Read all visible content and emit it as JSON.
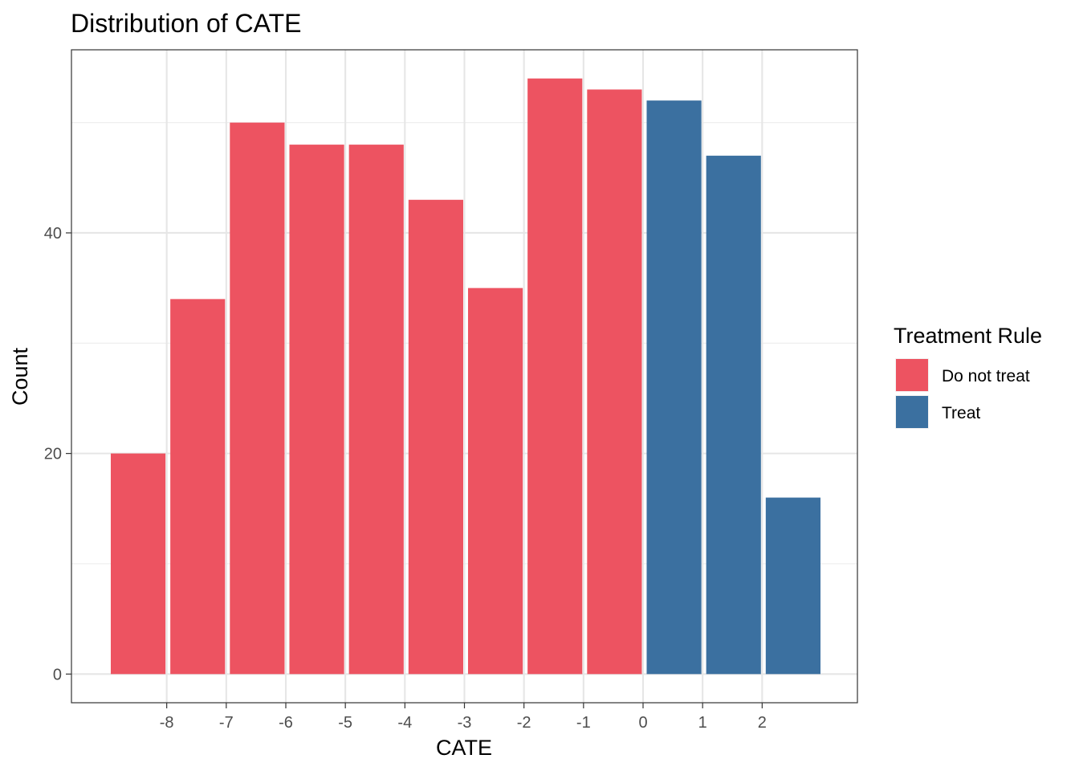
{
  "chart_data": {
    "type": "bar",
    "title": "Distribution of CATE",
    "xlabel": "CATE",
    "ylabel": "Count",
    "xlim": [
      -9.6,
      3.6
    ],
    "ylim": [
      -2.6,
      56.6
    ],
    "x_ticks": [
      -8,
      -7,
      -6,
      -5,
      -4,
      -3,
      -2,
      -1,
      0,
      1,
      2
    ],
    "x_tick_labels": [
      "-8",
      "-7",
      "-6",
      "-5",
      "-4",
      "-3",
      "-2",
      "-1",
      "0",
      "1",
      "2"
    ],
    "y_ticks": [
      0,
      20,
      40
    ],
    "y_tick_labels": [
      "0",
      "20",
      "40"
    ],
    "y_minor_ticks": [
      10,
      30,
      50
    ],
    "grid": true,
    "legend": {
      "title": "Treatment Rule",
      "position": "right",
      "entries": [
        {
          "label": "Do not treat",
          "color": "#ED5361"
        },
        {
          "label": "Treat",
          "color": "#3B70A0"
        }
      ]
    },
    "bars": [
      {
        "x0": -8.98,
        "x1": -7.98,
        "count": 20,
        "group": "Do not treat"
      },
      {
        "x0": -7.98,
        "x1": -6.98,
        "count": 34,
        "group": "Do not treat"
      },
      {
        "x0": -6.98,
        "x1": -5.98,
        "count": 50,
        "group": "Do not treat"
      },
      {
        "x0": -5.98,
        "x1": -4.98,
        "count": 48,
        "group": "Do not treat"
      },
      {
        "x0": -4.98,
        "x1": -3.98,
        "count": 48,
        "group": "Do not treat"
      },
      {
        "x0": -3.98,
        "x1": -2.98,
        "count": 43,
        "group": "Do not treat"
      },
      {
        "x0": -2.98,
        "x1": -1.98,
        "count": 35,
        "group": "Do not treat"
      },
      {
        "x0": -1.98,
        "x1": -0.98,
        "count": 54,
        "group": "Do not treat"
      },
      {
        "x0": -0.98,
        "x1": 0.02,
        "count": 53,
        "group": "Do not treat"
      },
      {
        "x0": 0.02,
        "x1": 1.02,
        "count": 52,
        "group": "Treat"
      },
      {
        "x0": 1.02,
        "x1": 2.02,
        "count": 47,
        "group": "Treat"
      },
      {
        "x0": 2.02,
        "x1": 3.02,
        "count": 16,
        "group": "Treat"
      }
    ]
  }
}
